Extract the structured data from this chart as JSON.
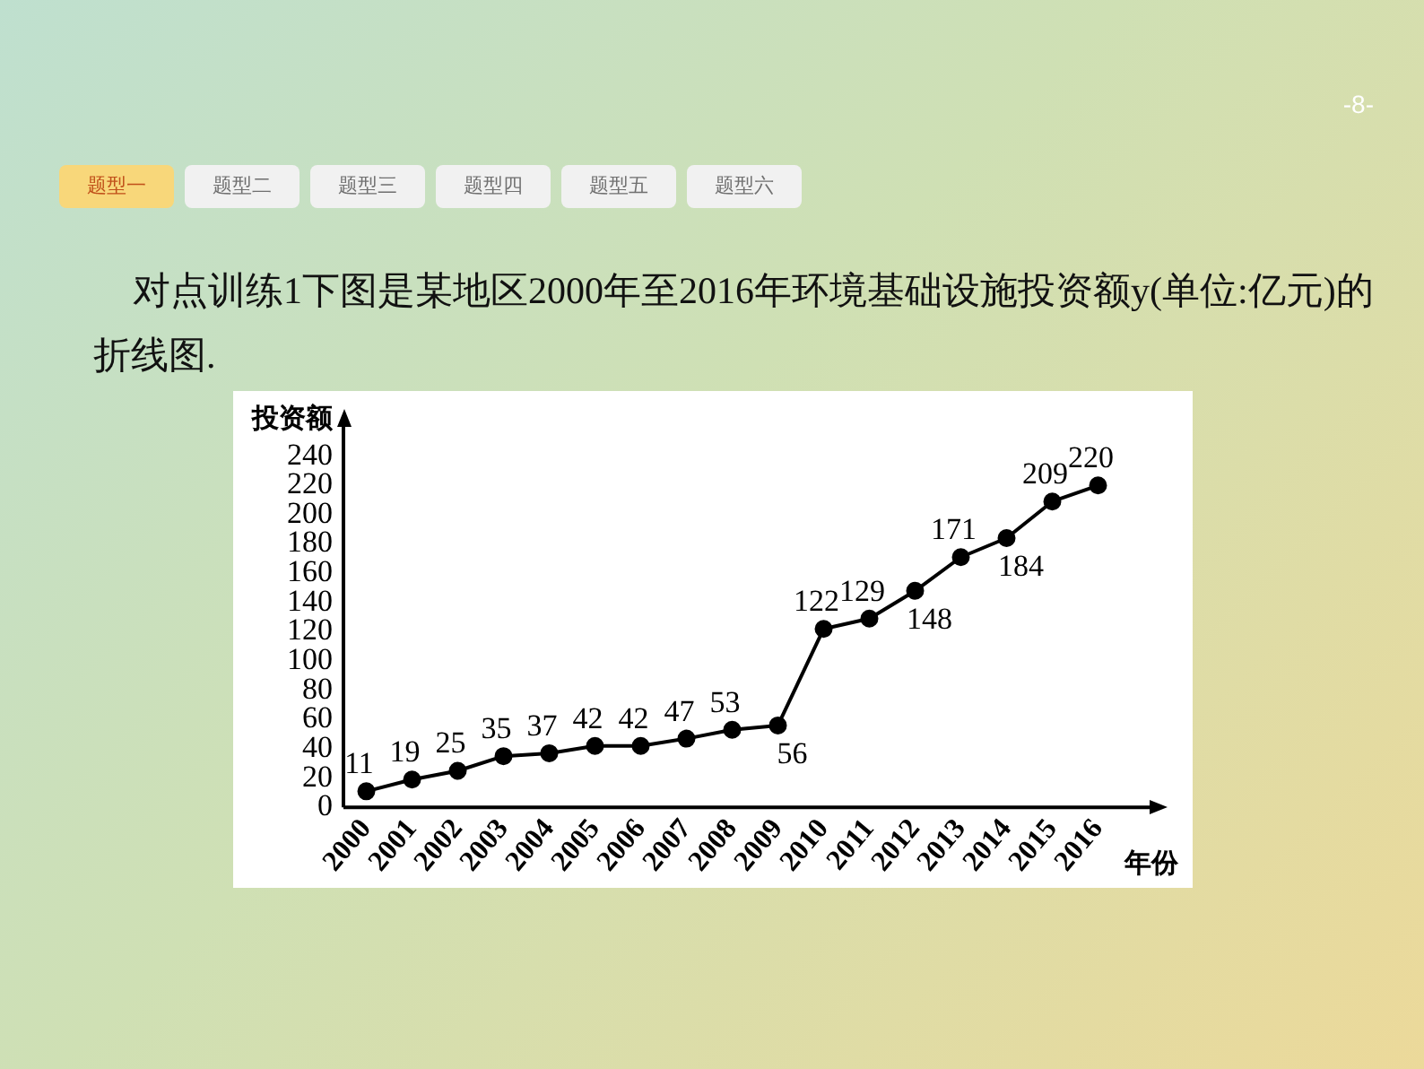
{
  "chart_data": {
    "type": "line",
    "title": "对点训练1下图是某地区2000年至2016年环境基础设施投资额y(单位:亿元)的折线图.",
    "xlabel": "年份",
    "ylabel": "投资额",
    "categories": [
      "2000",
      "2001",
      "2002",
      "2003",
      "2004",
      "2005",
      "2006",
      "2007",
      "2008",
      "2009",
      "2010",
      "2011",
      "2012",
      "2013",
      "2014",
      "2015",
      "2016"
    ],
    "values": [
      11,
      19,
      25,
      35,
      37,
      42,
      42,
      47,
      53,
      56,
      122,
      129,
      148,
      171,
      184,
      209,
      220
    ],
    "color": "#000000",
    "ylim": [
      0,
      260
    ],
    "yticks": [
      0,
      20,
      40,
      60,
      80,
      100,
      120,
      140,
      160,
      180,
      200,
      220,
      240
    ],
    "grid": false,
    "legend": false,
    "marker": "circle",
    "line_style": "solid",
    "data_labels": true,
    "annotations": [
      "-8-",
      "题型一",
      "题型二",
      "题型三",
      "题型四",
      "题型五",
      "题型六"
    ]
  }
}
